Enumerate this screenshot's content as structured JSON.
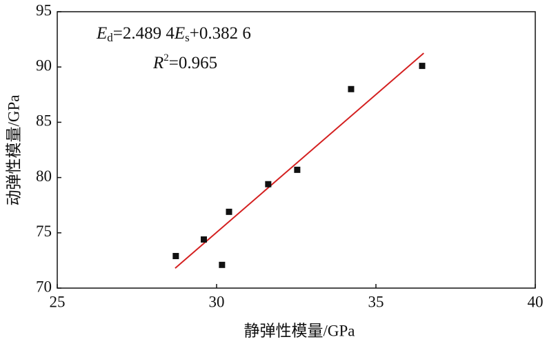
{
  "chart_data": {
    "type": "scatter",
    "x_label": "静弹性模量/GPa",
    "y_label": "动弹性模量/GPa",
    "x": [
      28.72,
      29.6,
      30.17,
      30.39,
      31.62,
      32.53,
      34.22,
      36.45
    ],
    "values": [
      72.9,
      74.4,
      72.1,
      76.9,
      79.4,
      80.7,
      88.0,
      90.1
    ],
    "color": "#111111",
    "fit_line": {
      "x": [
        28.7,
        36.5
      ],
      "values": [
        71.8,
        91.25
      ],
      "color": "#d42020"
    },
    "annotations": [
      [
        "E",
        "d",
        "=2.489 4",
        "E",
        "s",
        "+0.382 6"
      ],
      [
        "R",
        "2",
        "=0.965"
      ]
    ],
    "xlim": [
      25,
      40
    ],
    "xticks": [
      25,
      30,
      35,
      40
    ],
    "ylim": [
      70,
      95
    ],
    "yticks": [
      70,
      75,
      80,
      85,
      90,
      95
    ]
  }
}
